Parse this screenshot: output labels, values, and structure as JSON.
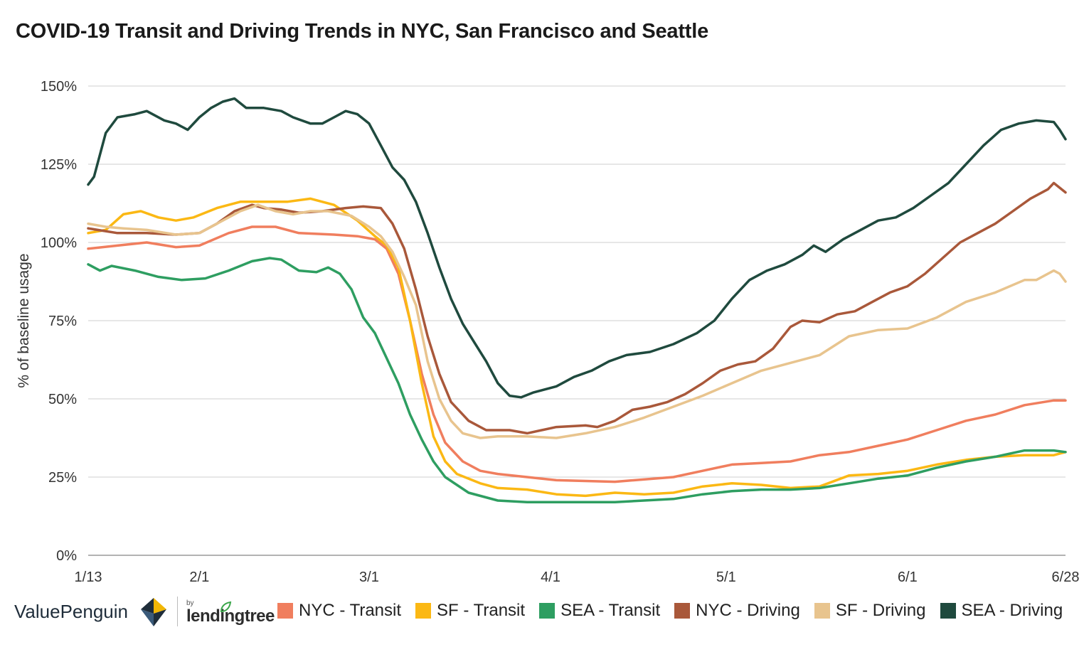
{
  "chart_data": {
    "type": "line",
    "title": "COVID-19 Transit and Driving Trends in NYC, San Francisco and Seattle",
    "ylabel": "% of baseline usage",
    "xlabel": "",
    "x_ticks": [
      "1/13",
      "2/1",
      "3/1",
      "4/1",
      "5/1",
      "6/1",
      "6/28"
    ],
    "x_tick_days": [
      0,
      19,
      48,
      79,
      109,
      140,
      167
    ],
    "y_ticks": [
      "0%",
      "25%",
      "50%",
      "75%",
      "100%",
      "125%",
      "150%"
    ],
    "ylim": [
      0,
      150
    ],
    "grid": "horizontal",
    "legend_position": "bottom",
    "series": [
      {
        "name": "NYC - Transit",
        "color": "#f07e5e",
        "points": [
          [
            0,
            98
          ],
          [
            5,
            99
          ],
          [
            10,
            100
          ],
          [
            15,
            98.5
          ],
          [
            19,
            99
          ],
          [
            24,
            103
          ],
          [
            28,
            105
          ],
          [
            32,
            105
          ],
          [
            36,
            103
          ],
          [
            42,
            102.5
          ],
          [
            46,
            102
          ],
          [
            49,
            101
          ],
          [
            51,
            98
          ],
          [
            53,
            90
          ],
          [
            55,
            75
          ],
          [
            57,
            58
          ],
          [
            59,
            45
          ],
          [
            61,
            36
          ],
          [
            64,
            30
          ],
          [
            67,
            27
          ],
          [
            70,
            26
          ],
          [
            75,
            25
          ],
          [
            80,
            24
          ],
          [
            90,
            23.5
          ],
          [
            100,
            25
          ],
          [
            105,
            27
          ],
          [
            110,
            29
          ],
          [
            115,
            29.5
          ],
          [
            120,
            30
          ],
          [
            125,
            32
          ],
          [
            130,
            33
          ],
          [
            135,
            35
          ],
          [
            140,
            37
          ],
          [
            145,
            40
          ],
          [
            150,
            43
          ],
          [
            155,
            45
          ],
          [
            160,
            48
          ],
          [
            165,
            49.5
          ],
          [
            167,
            49.5
          ]
        ]
      },
      {
        "name": "SF - Transit",
        "color": "#fbb814",
        "points": [
          [
            0,
            103
          ],
          [
            3,
            104
          ],
          [
            6,
            109
          ],
          [
            9,
            110
          ],
          [
            12,
            108
          ],
          [
            15,
            107
          ],
          [
            18,
            108
          ],
          [
            22,
            111
          ],
          [
            26,
            113
          ],
          [
            30,
            113
          ],
          [
            34,
            113
          ],
          [
            38,
            114
          ],
          [
            42,
            112
          ],
          [
            46,
            107
          ],
          [
            49,
            102
          ],
          [
            51,
            99
          ],
          [
            53,
            92
          ],
          [
            55,
            75
          ],
          [
            57,
            55
          ],
          [
            59,
            38
          ],
          [
            61,
            30
          ],
          [
            63,
            26
          ],
          [
            67,
            23
          ],
          [
            70,
            21.5
          ],
          [
            75,
            21
          ],
          [
            80,
            19.5
          ],
          [
            85,
            19
          ],
          [
            90,
            20
          ],
          [
            95,
            19.5
          ],
          [
            100,
            20
          ],
          [
            105,
            22
          ],
          [
            110,
            23
          ],
          [
            115,
            22.5
          ],
          [
            120,
            21.5
          ],
          [
            125,
            22
          ],
          [
            130,
            25.5
          ],
          [
            135,
            26
          ],
          [
            140,
            27
          ],
          [
            145,
            29
          ],
          [
            150,
            30.5
          ],
          [
            155,
            31.5
          ],
          [
            160,
            32
          ],
          [
            165,
            32
          ],
          [
            167,
            33
          ]
        ]
      },
      {
        "name": "SEA - Transit",
        "color": "#2e9e61",
        "points": [
          [
            0,
            93
          ],
          [
            2,
            91
          ],
          [
            4,
            92.5
          ],
          [
            8,
            91
          ],
          [
            12,
            89
          ],
          [
            16,
            88
          ],
          [
            20,
            88.5
          ],
          [
            24,
            91
          ],
          [
            28,
            94
          ],
          [
            31,
            95
          ],
          [
            33,
            94.5
          ],
          [
            36,
            91
          ],
          [
            39,
            90.5
          ],
          [
            41,
            92
          ],
          [
            43,
            90
          ],
          [
            45,
            85
          ],
          [
            47,
            76
          ],
          [
            49,
            71
          ],
          [
            51,
            63
          ],
          [
            53,
            55
          ],
          [
            55,
            45
          ],
          [
            57,
            37
          ],
          [
            59,
            30
          ],
          [
            61,
            25
          ],
          [
            65,
            20
          ],
          [
            70,
            17.5
          ],
          [
            75,
            17
          ],
          [
            80,
            17
          ],
          [
            90,
            17
          ],
          [
            100,
            18
          ],
          [
            105,
            19.5
          ],
          [
            110,
            20.5
          ],
          [
            115,
            21
          ],
          [
            120,
            21
          ],
          [
            125,
            21.5
          ],
          [
            130,
            23
          ],
          [
            135,
            24.5
          ],
          [
            140,
            25.5
          ],
          [
            145,
            28
          ],
          [
            150,
            30
          ],
          [
            155,
            31.5
          ],
          [
            160,
            33.5
          ],
          [
            165,
            33.5
          ],
          [
            167,
            33
          ]
        ]
      },
      {
        "name": "NYC - Driving",
        "color": "#a9583a",
        "points": [
          [
            0,
            104.5
          ],
          [
            5,
            103
          ],
          [
            10,
            103
          ],
          [
            15,
            102.5
          ],
          [
            19,
            103
          ],
          [
            22,
            106
          ],
          [
            25,
            110
          ],
          [
            28,
            112
          ],
          [
            30,
            111
          ],
          [
            33,
            110.5
          ],
          [
            36,
            109.5
          ],
          [
            40,
            110
          ],
          [
            44,
            111
          ],
          [
            47,
            111.5
          ],
          [
            50,
            111
          ],
          [
            52,
            106
          ],
          [
            54,
            98
          ],
          [
            56,
            85
          ],
          [
            58,
            70
          ],
          [
            60,
            58
          ],
          [
            62,
            49
          ],
          [
            65,
            43
          ],
          [
            68,
            40
          ],
          [
            72,
            40
          ],
          [
            75,
            39
          ],
          [
            80,
            41
          ],
          [
            85,
            41.5
          ],
          [
            87,
            41
          ],
          [
            90,
            43
          ],
          [
            93,
            46.5
          ],
          [
            96,
            47.5
          ],
          [
            99,
            49
          ],
          [
            102,
            51.5
          ],
          [
            105,
            55
          ],
          [
            108,
            59
          ],
          [
            111,
            61
          ],
          [
            114,
            62
          ],
          [
            117,
            66
          ],
          [
            120,
            73
          ],
          [
            122,
            75
          ],
          [
            125,
            74.5
          ],
          [
            128,
            77
          ],
          [
            131,
            78
          ],
          [
            134,
            81
          ],
          [
            137,
            84
          ],
          [
            140,
            86
          ],
          [
            143,
            90
          ],
          [
            146,
            95
          ],
          [
            149,
            100
          ],
          [
            152,
            103
          ],
          [
            155,
            106
          ],
          [
            158,
            110
          ],
          [
            161,
            114
          ],
          [
            164,
            117
          ],
          [
            165,
            119
          ],
          [
            167,
            116
          ]
        ]
      },
      {
        "name": "SF - Driving",
        "color": "#e8c48e",
        "points": [
          [
            0,
            106
          ],
          [
            3,
            105
          ],
          [
            6,
            104.5
          ],
          [
            10,
            104
          ],
          [
            15,
            102.5
          ],
          [
            19,
            103
          ],
          [
            23,
            107
          ],
          [
            26,
            110
          ],
          [
            29,
            112
          ],
          [
            32,
            110
          ],
          [
            35,
            109
          ],
          [
            38,
            110
          ],
          [
            41,
            110
          ],
          [
            45,
            108.5
          ],
          [
            48,
            105
          ],
          [
            50,
            102
          ],
          [
            52,
            97
          ],
          [
            54,
            89
          ],
          [
            56,
            80
          ],
          [
            58,
            62
          ],
          [
            60,
            50
          ],
          [
            62,
            43
          ],
          [
            64,
            39
          ],
          [
            67,
            37.5
          ],
          [
            70,
            38
          ],
          [
            75,
            38
          ],
          [
            80,
            37.5
          ],
          [
            85,
            39
          ],
          [
            90,
            41
          ],
          [
            95,
            44
          ],
          [
            100,
            47.5
          ],
          [
            105,
            51
          ],
          [
            110,
            55
          ],
          [
            115,
            59
          ],
          [
            120,
            61.5
          ],
          [
            125,
            64
          ],
          [
            130,
            70
          ],
          [
            135,
            72
          ],
          [
            140,
            72.5
          ],
          [
            145,
            76
          ],
          [
            150,
            81
          ],
          [
            155,
            84
          ],
          [
            160,
            88
          ],
          [
            162,
            88
          ],
          [
            165,
            91
          ],
          [
            166,
            90
          ],
          [
            167,
            87.5
          ]
        ]
      },
      {
        "name": "SEA - Driving",
        "color": "#1f4a3e",
        "points": [
          [
            0,
            118.5
          ],
          [
            1,
            121
          ],
          [
            3,
            135
          ],
          [
            5,
            140
          ],
          [
            8,
            141
          ],
          [
            10,
            142
          ],
          [
            13,
            139
          ],
          [
            15,
            138
          ],
          [
            17,
            136
          ],
          [
            19,
            140
          ],
          [
            21,
            143
          ],
          [
            23,
            145
          ],
          [
            25,
            146
          ],
          [
            27,
            143
          ],
          [
            30,
            143
          ],
          [
            33,
            142
          ],
          [
            35,
            140
          ],
          [
            38,
            138
          ],
          [
            40,
            138
          ],
          [
            42,
            140
          ],
          [
            44,
            142
          ],
          [
            46,
            141
          ],
          [
            48,
            138
          ],
          [
            50,
            131
          ],
          [
            52,
            124
          ],
          [
            54,
            120
          ],
          [
            56,
            113
          ],
          [
            58,
            103
          ],
          [
            60,
            92
          ],
          [
            62,
            82
          ],
          [
            64,
            74
          ],
          [
            66,
            68
          ],
          [
            68,
            62
          ],
          [
            70,
            55
          ],
          [
            72,
            51
          ],
          [
            74,
            50.5
          ],
          [
            76,
            52
          ],
          [
            80,
            54
          ],
          [
            83,
            57
          ],
          [
            86,
            59
          ],
          [
            89,
            62
          ],
          [
            92,
            64
          ],
          [
            96,
            65
          ],
          [
            100,
            67.5
          ],
          [
            104,
            71
          ],
          [
            107,
            75
          ],
          [
            110,
            82
          ],
          [
            113,
            88
          ],
          [
            116,
            91
          ],
          [
            119,
            93
          ],
          [
            122,
            96
          ],
          [
            124,
            99
          ],
          [
            126,
            97
          ],
          [
            129,
            101
          ],
          [
            132,
            104
          ],
          [
            135,
            107
          ],
          [
            138,
            108
          ],
          [
            141,
            111
          ],
          [
            144,
            115
          ],
          [
            147,
            119
          ],
          [
            150,
            125
          ],
          [
            153,
            131
          ],
          [
            156,
            136
          ],
          [
            159,
            138
          ],
          [
            162,
            139
          ],
          [
            165,
            138.5
          ],
          [
            166,
            136
          ],
          [
            167,
            133
          ]
        ]
      }
    ]
  },
  "footer": {
    "brand_left": "ValuePenguin",
    "brand_by": "by",
    "brand_right": "lendingtree"
  },
  "legend_items": [
    {
      "label": "NYC - Transit",
      "color": "#f07e5e"
    },
    {
      "label": "SF - Transit",
      "color": "#fbb814"
    },
    {
      "label": "SEA - Transit",
      "color": "#2e9e61"
    },
    {
      "label": "NYC - Driving",
      "color": "#a9583a"
    },
    {
      "label": "SF - Driving",
      "color": "#e8c48e"
    },
    {
      "label": "SEA - Driving",
      "color": "#1f4a3e"
    }
  ]
}
